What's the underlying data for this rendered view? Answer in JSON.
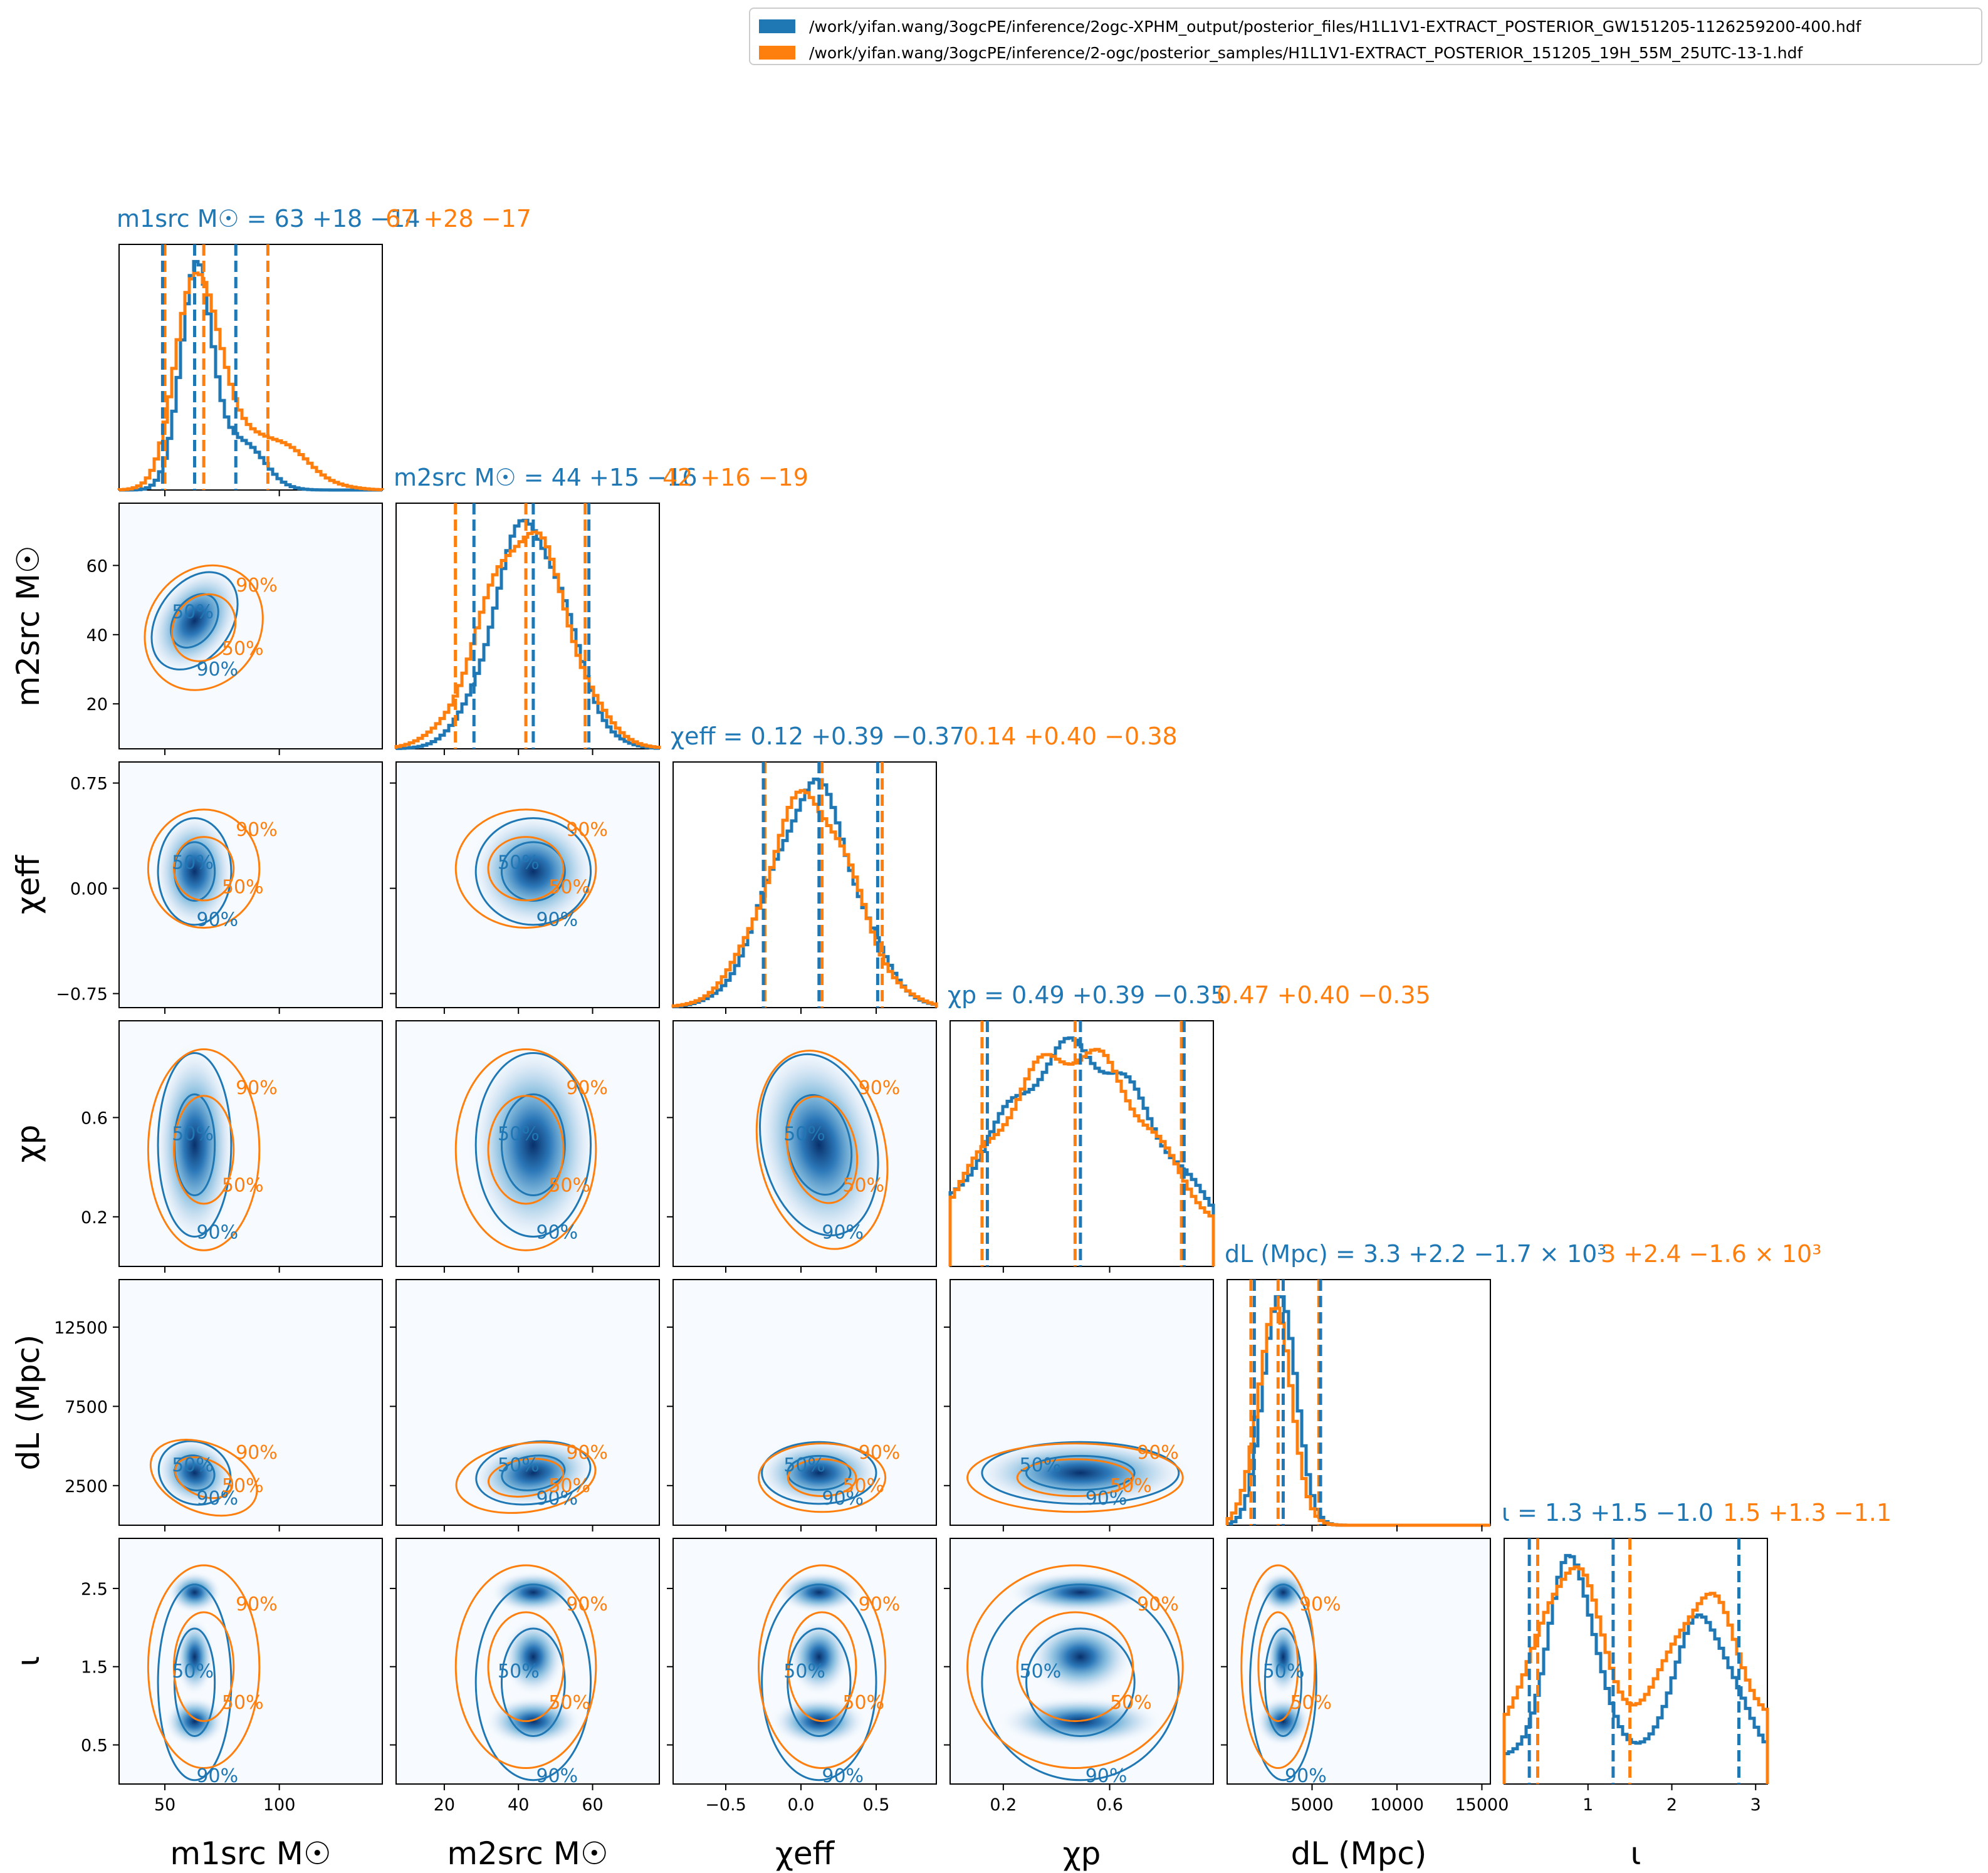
{
  "colors": {
    "blue": "#1f77b4",
    "orange": "#ff7f0e",
    "density": "Blues"
  },
  "legend": {
    "location": "top-right",
    "entries": [
      {
        "label": "/work/yifan.wang/3ogcPE/inference/2ogc-XPHM_output/posterior_files/H1L1V1-EXTRACT_POSTERIOR_GW151205-1126259200-400.hdf",
        "color": "#1f77b4"
      },
      {
        "label": "/work/yifan.wang/3ogcPE/inference/2-ogc/posterior_samples/H1L1V1-EXTRACT_POSTERIOR_151205_19H_55M_25UTC-13-1.hdf",
        "color": "#ff7f0e"
      }
    ]
  },
  "chart_data": {
    "type": "corner",
    "contour_levels": [
      "50%",
      "90%"
    ],
    "parameters": [
      {
        "id": "m1",
        "label": "m1src M☉",
        "title_blue": "m1src M☉ = 63 +18 −14",
        "title_orange": "67 +28 −17",
        "range": [
          30,
          145
        ],
        "ticks": [
          50,
          100
        ],
        "tick_labels": [
          "50",
          "100"
        ],
        "blue": {
          "median": 63,
          "lo": 49,
          "hi": 81
        },
        "orange": {
          "median": 67,
          "lo": 50,
          "hi": 95
        }
      },
      {
        "id": "m2",
        "label": "m2src M☉",
        "title_blue": "m2src M☉ = 44 +15 −16",
        "title_orange": "42 +16 −19",
        "range": [
          7,
          78
        ],
        "ticks": [
          20,
          40,
          60
        ],
        "tick_labels": [
          "20",
          "40",
          "60"
        ],
        "blue": {
          "median": 44,
          "lo": 28,
          "hi": 59
        },
        "orange": {
          "median": 42,
          "lo": 23,
          "hi": 58
        }
      },
      {
        "id": "chi_eff",
        "label": "χeff",
        "title_blue": "χeff = 0.12 +0.39 −0.37",
        "title_orange": "0.14 +0.40 −0.38",
        "range": [
          -0.85,
          0.9
        ],
        "ticks": [
          -0.5,
          0.0,
          0.5
        ],
        "tick_labels": [
          "−0.5",
          "0.0",
          "0.5"
        ],
        "yticks": [
          -0.75,
          0.0,
          0.75
        ],
        "ytick_labels": [
          "−0.75",
          "0.00",
          "0.75"
        ],
        "blue": {
          "median": 0.12,
          "lo": -0.25,
          "hi": 0.51
        },
        "orange": {
          "median": 0.14,
          "lo": -0.24,
          "hi": 0.54
        }
      },
      {
        "id": "chi_p",
        "label": "χp",
        "title_blue": "χp = 0.49 +0.39 −0.35",
        "title_orange": "0.47 +0.40 −0.35",
        "range": [
          0.0,
          0.99
        ],
        "ticks": [
          0.2,
          0.6
        ],
        "tick_labels": [
          "0.2",
          "0.6"
        ],
        "blue": {
          "median": 0.49,
          "lo": 0.14,
          "hi": 0.88
        },
        "orange": {
          "median": 0.47,
          "lo": 0.12,
          "hi": 0.87
        }
      },
      {
        "id": "dL",
        "label": "dL (Mpc)",
        "title_blue": "dL (Mpc) = 3.3 +2.2 −1.7 × 10³",
        "title_orange": "3 +2.4 −1.6 × 10³",
        "range": [
          0,
          15500
        ],
        "ticks": [
          5000,
          10000,
          15000
        ],
        "tick_labels": [
          "5000",
          "10000",
          "15000"
        ],
        "yticks": [
          2500,
          7500,
          12500
        ],
        "ytick_labels": [
          "2500",
          "7500",
          "12500"
        ],
        "blue": {
          "median": 3300,
          "lo": 1600,
          "hi": 5500
        },
        "orange": {
          "median": 3000,
          "lo": 1400,
          "hi": 5400
        }
      },
      {
        "id": "iota",
        "label": "ι",
        "title_blue": "ι = 1.3 +1.5 −1.0",
        "title_orange": "1.5 +1.3 −1.1",
        "range": [
          0.0,
          3.14
        ],
        "ticks": [
          1,
          2,
          3
        ],
        "tick_labels": [
          "1",
          "2",
          "3"
        ],
        "yticks": [
          0.5,
          1.5,
          2.5
        ],
        "ytick_labels": [
          "0.5",
          "1.5",
          "2.5"
        ],
        "blue": {
          "median": 1.3,
          "lo": 0.3,
          "hi": 2.8
        },
        "orange": {
          "median": 1.5,
          "lo": 0.4,
          "hi": 2.8
        }
      }
    ]
  }
}
